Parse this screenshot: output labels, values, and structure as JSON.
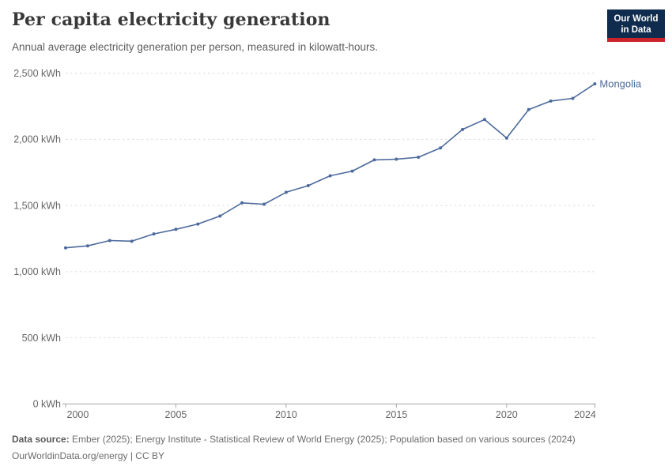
{
  "header": {
    "title": "Per capita electricity generation",
    "subtitle": "Annual average electricity generation per person, measured in kilowatt-hours."
  },
  "logo": {
    "line1": "Our World",
    "line2": "in Data",
    "bg_color": "#0f2b4d",
    "accent_color": "#cc2229"
  },
  "chart_data": {
    "type": "line",
    "title": "Per capita electricity generation",
    "subtitle": "Annual average electricity generation per person, measured in kilowatt-hours.",
    "unit": "kWh",
    "x": [
      2000,
      2001,
      2002,
      2003,
      2004,
      2005,
      2006,
      2007,
      2008,
      2009,
      2010,
      2011,
      2012,
      2013,
      2014,
      2015,
      2016,
      2017,
      2018,
      2019,
      2020,
      2021,
      2022,
      2023,
      2024
    ],
    "series": [
      {
        "name": "Mongolia",
        "color": "#4c6a9c",
        "values": [
          1180,
          1195,
          1235,
          1230,
          1285,
          1320,
          1360,
          1420,
          1520,
          1510,
          1600,
          1650,
          1725,
          1760,
          1845,
          1850,
          1865,
          1935,
          2075,
          2150,
          2010,
          2225,
          2290,
          2310,
          2420
        ]
      }
    ],
    "xlim": [
      2000,
      2024
    ],
    "ylim": [
      0,
      2500
    ],
    "xticks": [
      2000,
      2005,
      2010,
      2015,
      2020,
      2024
    ],
    "yticks": [
      0,
      500,
      1000,
      1500,
      2000,
      2500
    ],
    "ytick_suffix": " kWh",
    "grid": "horizontal-dashed",
    "legend": "entity-label-at-line-end",
    "colors": {
      "grid": "#dedede",
      "axis": "#a6a6a6",
      "tick_text": "#666666"
    }
  },
  "footer": {
    "source_label": "Data source:",
    "source_text": " Ember (2025); Energy Institute - Statistical Review of World Energy (2025); Population based on various sources (2024)",
    "license_line": "OurWorldinData.org/energy | CC BY"
  }
}
